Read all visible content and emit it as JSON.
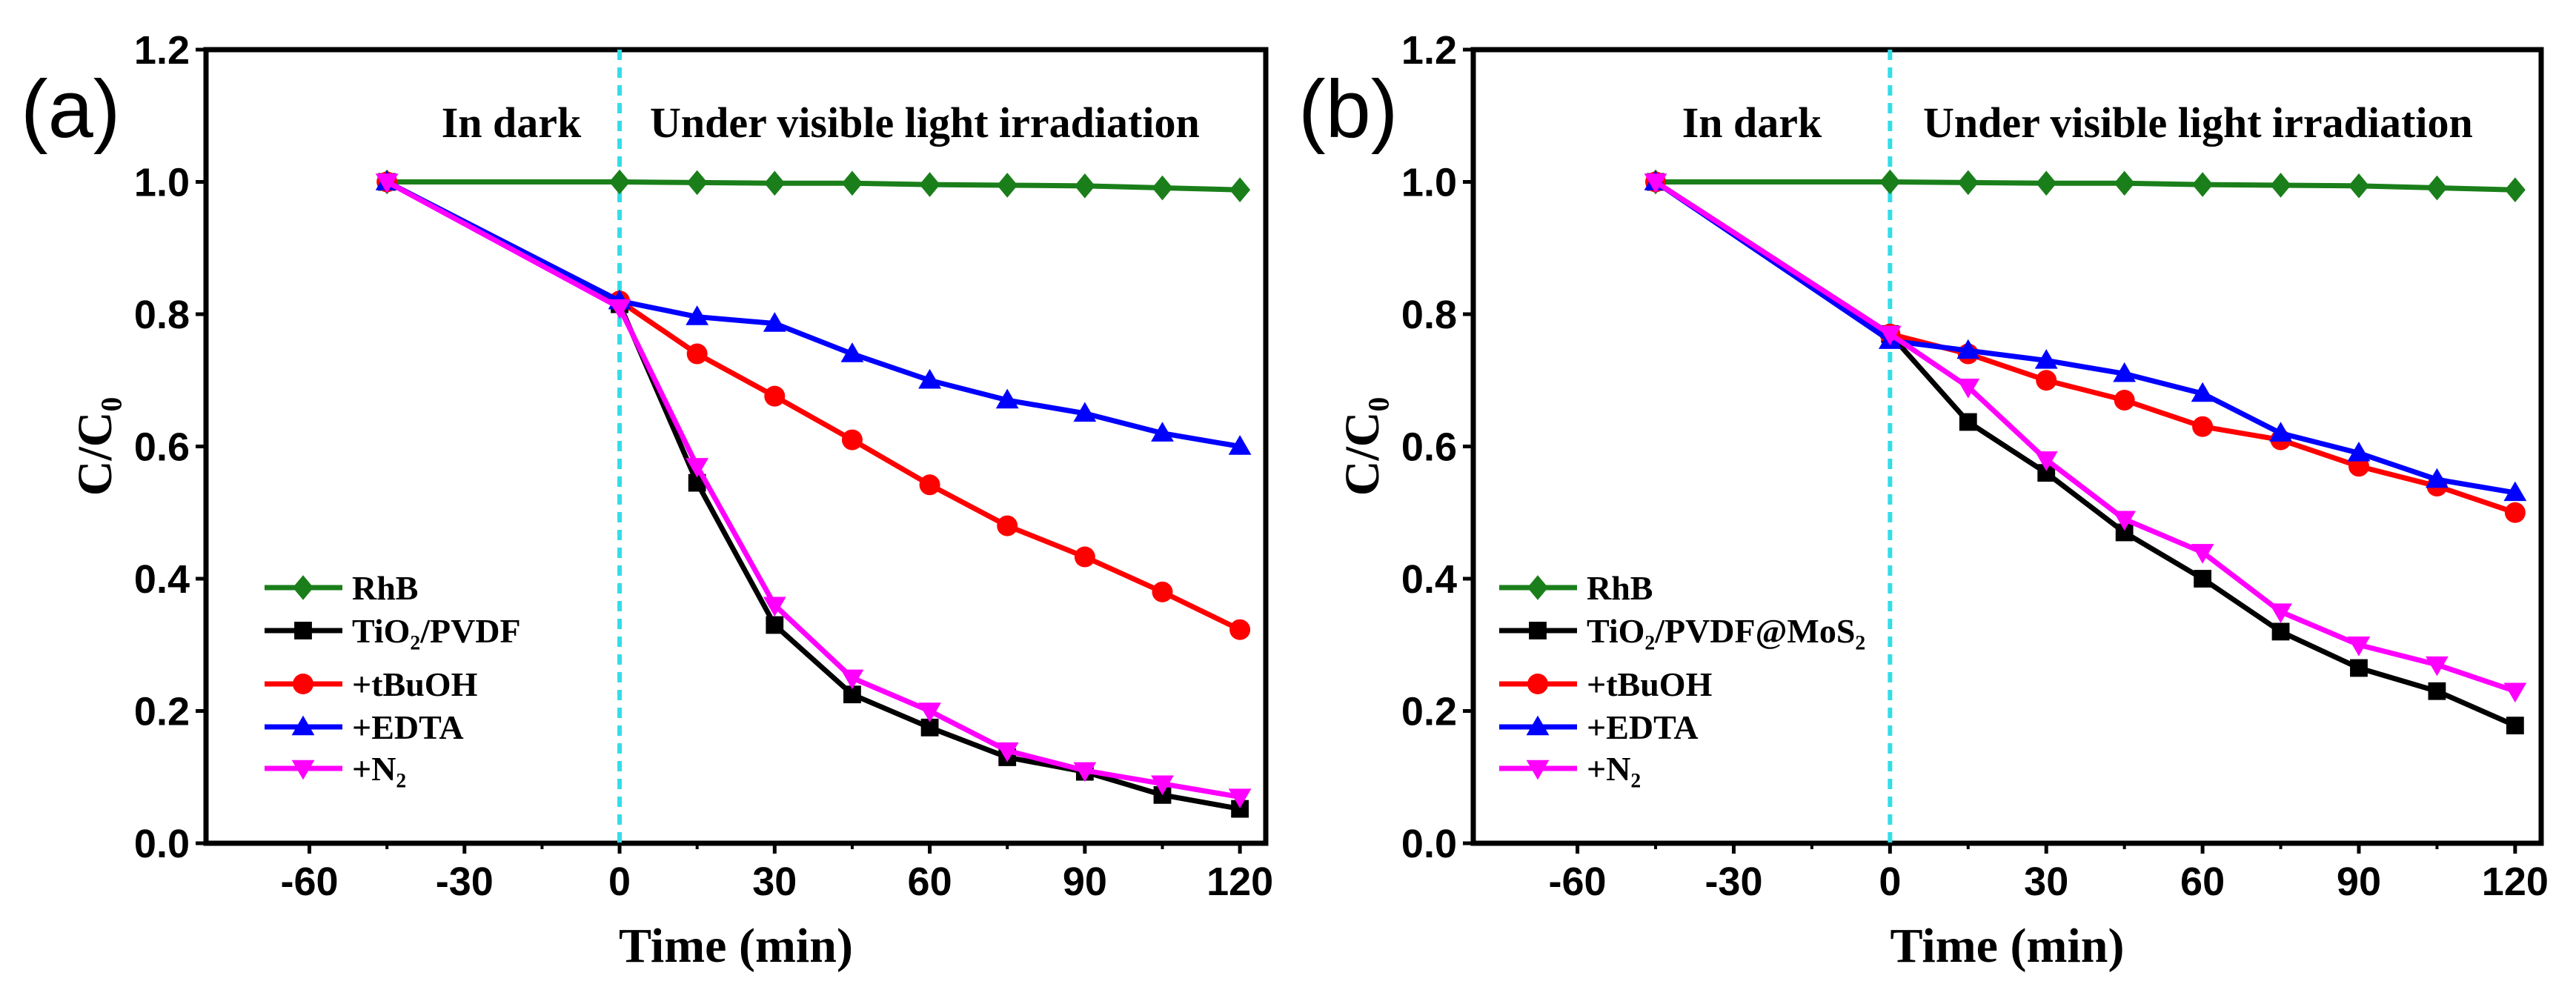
{
  "chart_data": [
    {
      "type": "line",
      "panel_label": "(a)",
      "xlabel": "Time (min)",
      "ylabel": "C/C₀",
      "xlim": [
        -80,
        125
      ],
      "ylim": [
        0,
        1.2
      ],
      "xticks": [
        -60,
        -30,
        0,
        30,
        60,
        90,
        120
      ],
      "yticks": [
        "0.0",
        "0.2",
        "0.4",
        "0.6",
        "0.8",
        "1.0",
        "1.2"
      ],
      "annotations": [
        "In dark",
        "Under visible light irradiation"
      ],
      "divider_x": 0,
      "legend_position": "bottom-left",
      "x": [
        -45,
        0,
        15,
        30,
        45,
        60,
        75,
        90,
        105,
        120
      ],
      "series": [
        {
          "name": "RhB",
          "color": "#1a7f1a",
          "marker": "diamond",
          "values": [
            1.0,
            1.0,
            0.999,
            0.998,
            0.998,
            0.996,
            0.995,
            0.994,
            0.991,
            0.988
          ]
        },
        {
          "name": "TiO₂/PVDF",
          "color": "#000000",
          "marker": "square",
          "values": [
            1.0,
            0.815,
            0.545,
            0.33,
            0.225,
            0.175,
            0.13,
            0.108,
            0.073,
            0.052
          ]
        },
        {
          "name": "+tBuOH",
          "color": "#ff0000",
          "marker": "circle",
          "values": [
            1.0,
            0.82,
            0.74,
            0.676,
            0.61,
            0.542,
            0.48,
            0.433,
            0.38,
            0.323
          ]
        },
        {
          "name": "+EDTA",
          "color": "#0000ff",
          "marker": "triangle-up",
          "values": [
            1.0,
            0.82,
            0.796,
            0.786,
            0.74,
            0.7,
            0.67,
            0.65,
            0.62,
            0.6
          ]
        },
        {
          "name": "+N₂",
          "color": "#ff00ff",
          "marker": "triangle-down",
          "values": [
            1.0,
            0.81,
            0.57,
            0.36,
            0.25,
            0.2,
            0.14,
            0.11,
            0.09,
            0.07
          ]
        }
      ]
    },
    {
      "type": "line",
      "panel_label": "(b)",
      "xlabel": "Time (min)",
      "ylabel": "C/C₀",
      "xlim": [
        -80,
        125
      ],
      "ylim": [
        0,
        1.2
      ],
      "xticks": [
        -60,
        -30,
        0,
        30,
        60,
        90,
        120
      ],
      "yticks": [
        "0.0",
        "0.2",
        "0.4",
        "0.6",
        "0.8",
        "1.0",
        "1.2"
      ],
      "annotations": [
        "In dark",
        "Under visible light irradiation"
      ],
      "divider_x": 0,
      "legend_position": "bottom-left",
      "x": [
        -45,
        0,
        15,
        30,
        45,
        60,
        75,
        90,
        105,
        120
      ],
      "series": [
        {
          "name": "RhB",
          "color": "#1a7f1a",
          "marker": "diamond",
          "values": [
            1.0,
            1.0,
            0.999,
            0.998,
            0.998,
            0.996,
            0.995,
            0.994,
            0.991,
            0.988
          ]
        },
        {
          "name": "TiO₂/PVDF@MoS₂",
          "color": "#000000",
          "marker": "square",
          "values": [
            1.0,
            0.77,
            0.637,
            0.56,
            0.47,
            0.4,
            0.32,
            0.265,
            0.23,
            0.178
          ]
        },
        {
          "name": "+tBuOH",
          "color": "#ff0000",
          "marker": "circle",
          "values": [
            1.0,
            0.77,
            0.74,
            0.7,
            0.67,
            0.63,
            0.61,
            0.57,
            0.54,
            0.5
          ]
        },
        {
          "name": "+EDTA",
          "color": "#0000ff",
          "marker": "triangle-up",
          "values": [
            1.0,
            0.76,
            0.745,
            0.73,
            0.71,
            0.68,
            0.62,
            0.59,
            0.55,
            0.53
          ]
        },
        {
          "name": "+N₂",
          "color": "#ff00ff",
          "marker": "triangle-down",
          "values": [
            1.0,
            0.77,
            0.69,
            0.58,
            0.49,
            0.44,
            0.35,
            0.3,
            0.27,
            0.23
          ]
        }
      ]
    }
  ]
}
